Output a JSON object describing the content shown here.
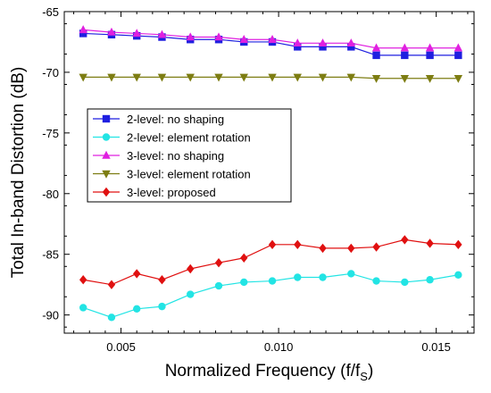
{
  "chart_data": {
    "type": "line",
    "title": "",
    "xlabel": "Normalized Frequency (f/f",
    "xlabel_sub": "S",
    "xlabel_close": ")",
    "ylabel": "Total In-band Distortion (dB)",
    "xlim": [
      0.0032,
      0.0162
    ],
    "ylim": [
      -91.5,
      -65
    ],
    "xticks": [
      0.005,
      0.01,
      0.015
    ],
    "xtick_labels": [
      "0.005",
      "0.010",
      "0.015"
    ],
    "yticks": [
      -90,
      -85,
      -80,
      -75,
      -70,
      -65
    ],
    "ytick_labels": [
      "-90",
      "-85",
      "-80",
      "-75",
      "-70",
      "-65"
    ],
    "legend_position": "center-left",
    "grid": false,
    "x": [
      0.0038,
      0.0047,
      0.0055,
      0.0063,
      0.0072,
      0.0081,
      0.0089,
      0.0098,
      0.0106,
      0.0114,
      0.0123,
      0.0131,
      0.014,
      0.0148,
      0.0157
    ],
    "series": [
      {
        "name": "2-level: no shaping",
        "color": "#1f1fe0",
        "marker": "square",
        "values": [
          -66.8,
          -66.9,
          -67.0,
          -67.1,
          -67.3,
          -67.3,
          -67.5,
          -67.5,
          -67.9,
          -67.9,
          -67.9,
          -68.6,
          -68.6,
          -68.6,
          -68.6
        ]
      },
      {
        "name": "2-level: element rotation",
        "color": "#22e4e4",
        "marker": "circle",
        "values": [
          -89.4,
          -90.2,
          -89.5,
          -89.3,
          -88.3,
          -87.6,
          -87.3,
          -87.2,
          -86.9,
          -86.9,
          -86.6,
          -87.2,
          -87.3,
          -87.1,
          -86.7
        ]
      },
      {
        "name": "3-level: no shaping",
        "color": "#e020e0",
        "marker": "triangle-up",
        "values": [
          -66.5,
          -66.7,
          -66.8,
          -66.9,
          -67.1,
          -67.1,
          -67.3,
          -67.3,
          -67.6,
          -67.6,
          -67.6,
          -68.0,
          -68.0,
          -68.0,
          -68.0
        ]
      },
      {
        "name": "3-level: element rotation",
        "color": "#7d7d12",
        "marker": "triangle-down",
        "values": [
          -70.4,
          -70.4,
          -70.4,
          -70.4,
          -70.4,
          -70.4,
          -70.4,
          -70.4,
          -70.4,
          -70.4,
          -70.4,
          -70.5,
          -70.5,
          -70.5,
          -70.5
        ]
      },
      {
        "name": "3-level: proposed",
        "color": "#e01010",
        "marker": "diamond",
        "values": [
          -87.1,
          -87.5,
          -86.6,
          -87.1,
          -86.2,
          -85.7,
          -85.3,
          -84.2,
          -84.2,
          -84.5,
          -84.5,
          -84.4,
          -83.8,
          -84.1,
          -84.2
        ]
      }
    ]
  }
}
